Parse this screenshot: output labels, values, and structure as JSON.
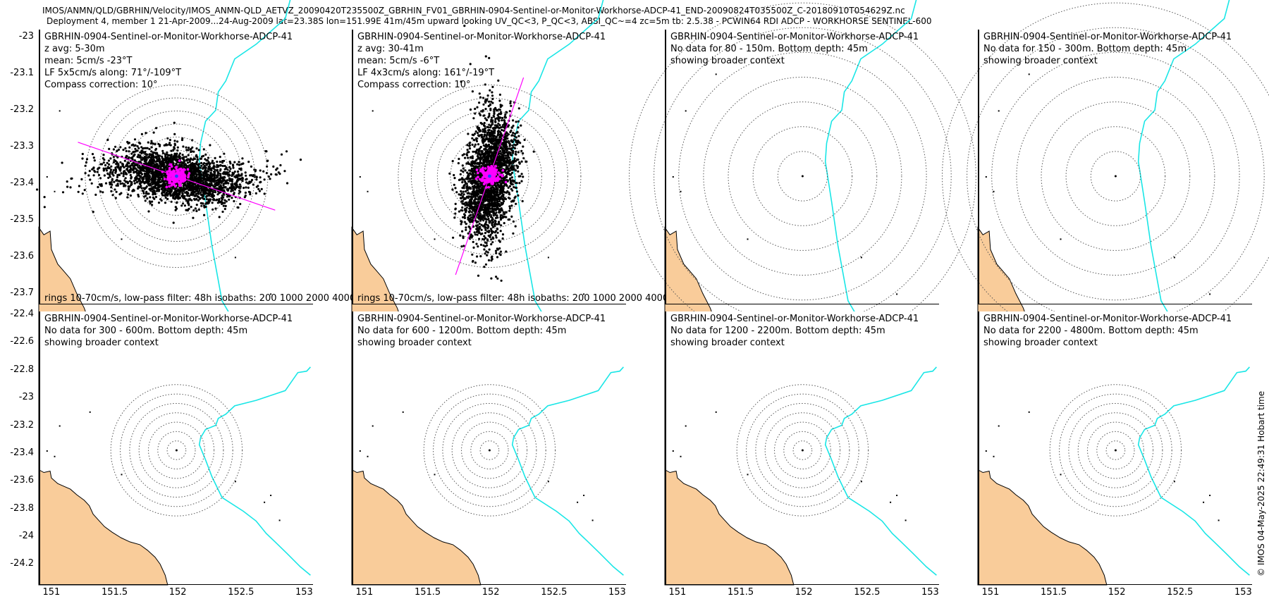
{
  "header": {
    "path": "IMOS/ANMN/QLD/GBRHIN/Velocity/IMOS_ANMN-QLD_AETVZ_20090420T235500Z_GBRHIN_FV01_GBRHIN-0904-Sentinel-or-Monitor-Workhorse-ADCP-41_END-20090824T035500Z_C-20180910T054629Z.nc",
    "deployment": "Deployment 4, member 1 21-Apr-2009...24-Aug-2009 lat=23.38S lon=151.99E 41m/45m upward looking UV_QC<3, P_QC<3, ABSI_QC~=4 zc=5m tb: 2.5.38 - PCWIN64 RDI ADCP - WORKHORSE SENTINEL-600"
  },
  "credit": "© IMOS 04-May-2025 22:49:31 Hobart time",
  "colors": {
    "land": "#f9cc9a",
    "isobath": "#19e6e6",
    "scatter": "#000000",
    "scatter_lowpass": "#ff00ff",
    "rings": "#555555"
  },
  "chart_data": {
    "type": "scatter",
    "grid": false,
    "lon_ticks": [
      "151",
      "151.5",
      "152",
      "152.5",
      "153"
    ],
    "lon_range": [
      150.9,
      153.07
    ],
    "station": {
      "lon": 151.99,
      "lat": -23.38
    },
    "top_row": {
      "lat_range": [
        -23.73,
        -22.98
      ],
      "ylim_labels": [
        "-23",
        "-23.1",
        "-23.2",
        "-23.3",
        "-23.4",
        "-23.5",
        "-23.6",
        "-23.7"
      ],
      "panels": [
        {
          "title": "GBRHIN-0904-Sentinel-or-Monitor-Workhorse-ADCP-41",
          "lines": [
            "z avg: 5-30m",
            "mean: 5cm/s -23°T",
            "LF 5x5cm/s along: 71°/-109°T",
            "Compass correction: 10°"
          ],
          "note": "rings 10-70cm/s, low-pass filter: 48h isobaths: 200 1000 2000 4000",
          "has_data": true,
          "mean_speed_cms": 5,
          "mean_dir_degT": -23,
          "lf_major_cms": 5,
          "lf_minor_cms": 5,
          "along_axis_deg": 71,
          "rings_cms": [
            10,
            20,
            30,
            40,
            50,
            60,
            70
          ],
          "cloud_major_cms": 52,
          "cloud_minor_cms": 13
        },
        {
          "title": "GBRHIN-0904-Sentinel-or-Monitor-Workhorse-ADCP-41",
          "lines": [
            "z avg: 30-41m",
            "mean: 5cm/s -6°T",
            "LF 4x3cm/s along: 161°/-19°T",
            "Compass correction: 10°"
          ],
          "note": "rings 10-70cm/s, low-pass filter: 48h isobaths: 200 1000 2000 4000",
          "has_data": true,
          "mean_speed_cms": 5,
          "mean_dir_degT": -6,
          "lf_major_cms": 4,
          "lf_minor_cms": 3,
          "along_axis_deg": 161,
          "rings_cms": [
            10,
            20,
            30,
            40,
            50,
            60,
            70
          ],
          "cloud_major_cms": 48,
          "cloud_minor_cms": 12
        },
        {
          "title": "GBRHIN-0904-Sentinel-or-Monitor-Workhorse-ADCP-41",
          "lines": [
            "No data for 80 - 150m. Bottom depth: 45m",
            "showing broader context"
          ],
          "has_data": false
        },
        {
          "title": "GBRHIN-0904-Sentinel-or-Monitor-Workhorse-ADCP-41",
          "lines": [
            "No data for 150 - 300m. Bottom depth: 45m",
            "showing broader context"
          ],
          "has_data": false
        }
      ]
    },
    "bottom_row": {
      "lat_range": [
        -24.35,
        -22.38
      ],
      "ylim_labels": [
        "-22.4",
        "-22.6",
        "-22.8",
        "-23",
        "-23.2",
        "-23.4",
        "-23.6",
        "-23.8",
        "-24",
        "-24.2"
      ],
      "panels": [
        {
          "title": "GBRHIN-0904-Sentinel-or-Monitor-Workhorse-ADCP-41",
          "lines": [
            "No data for 300 - 600m. Bottom depth: 45m",
            "showing broader context"
          ],
          "has_data": false
        },
        {
          "title": "GBRHIN-0904-Sentinel-or-Monitor-Workhorse-ADCP-41",
          "lines": [
            "No data for 600 - 1200m. Bottom depth: 45m",
            "showing broader context"
          ],
          "has_data": false
        },
        {
          "title": "GBRHIN-0904-Sentinel-or-Monitor-Workhorse-ADCP-41",
          "lines": [
            "No data for 1200 - 2200m. Bottom depth: 45m",
            "showing broader context"
          ],
          "has_data": false
        },
        {
          "title": "GBRHIN-0904-Sentinel-or-Monitor-Workhorse-ADCP-41",
          "lines": [
            "No data for 2200 - 4800m. Bottom depth: 45m",
            "showing broader context"
          ],
          "has_data": false
        }
      ]
    },
    "isobath_line": [
      [
        153.05,
        -22.78
      ],
      [
        153.02,
        -22.81
      ],
      [
        152.95,
        -22.82
      ],
      [
        152.85,
        -22.95
      ],
      [
        152.62,
        -23.02
      ],
      [
        152.45,
        -23.06
      ],
      [
        152.38,
        -23.12
      ],
      [
        152.32,
        -23.15
      ],
      [
        152.3,
        -23.2
      ],
      [
        152.22,
        -23.23
      ],
      [
        152.18,
        -23.29
      ],
      [
        152.17,
        -23.34
      ],
      [
        152.22,
        -23.45
      ],
      [
        152.27,
        -23.57
      ],
      [
        152.35,
        -23.72
      ],
      [
        152.52,
        -23.82
      ],
      [
        152.62,
        -23.89
      ],
      [
        152.7,
        -23.98
      ],
      [
        152.77,
        -24.04
      ],
      [
        152.86,
        -24.12
      ],
      [
        152.97,
        -24.22
      ],
      [
        153.05,
        -24.28
      ]
    ],
    "coastline": [
      [
        150.9,
        -23.52
      ],
      [
        150.94,
        -23.54
      ],
      [
        150.99,
        -23.53
      ],
      [
        151.0,
        -23.58
      ],
      [
        151.05,
        -23.62
      ],
      [
        151.1,
        -23.64
      ],
      [
        151.15,
        -23.66
      ],
      [
        151.2,
        -23.7
      ],
      [
        151.26,
        -23.74
      ],
      [
        151.3,
        -23.78
      ],
      [
        151.33,
        -23.84
      ],
      [
        151.38,
        -23.89
      ],
      [
        151.42,
        -23.93
      ],
      [
        151.48,
        -23.97
      ],
      [
        151.55,
        -24.01
      ],
      [
        151.62,
        -24.04
      ],
      [
        151.7,
        -24.06
      ],
      [
        151.76,
        -24.1
      ],
      [
        151.82,
        -24.15
      ],
      [
        151.86,
        -24.2
      ],
      [
        151.9,
        -24.28
      ],
      [
        151.92,
        -24.35
      ],
      [
        150.9,
        -24.35
      ]
    ]
  }
}
